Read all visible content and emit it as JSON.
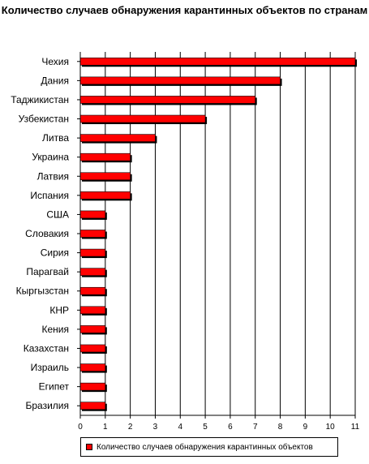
{
  "chart_data": {
    "type": "bar",
    "orientation": "horizontal",
    "title": "Количество случаев обнаружения карантинных объектов по странам",
    "categories": [
      "Чехия",
      "Дания",
      "Таджикистан",
      "Узбекистан",
      "Литва",
      "Украина",
      "Латвия",
      "Испания",
      "США",
      "Словакия",
      "Сирия",
      "Парагвай",
      "Кыргызстан",
      "КНР",
      "Кения",
      "Казахстан",
      "Израиль",
      "Египет",
      "Бразилия"
    ],
    "series": [
      {
        "name": "Количество случаев обнаружения карантинных объектов",
        "values": [
          11,
          8,
          7,
          5,
          3,
          2,
          2,
          2,
          1,
          1,
          1,
          1,
          1,
          1,
          1,
          1,
          1,
          1,
          1
        ],
        "color": "#ff0000"
      }
    ],
    "xlim": [
      0,
      11
    ],
    "xticks": [
      0,
      1,
      2,
      3,
      4,
      5,
      6,
      7,
      8,
      9,
      10,
      11
    ],
    "grid": true,
    "legend": "bottom"
  }
}
